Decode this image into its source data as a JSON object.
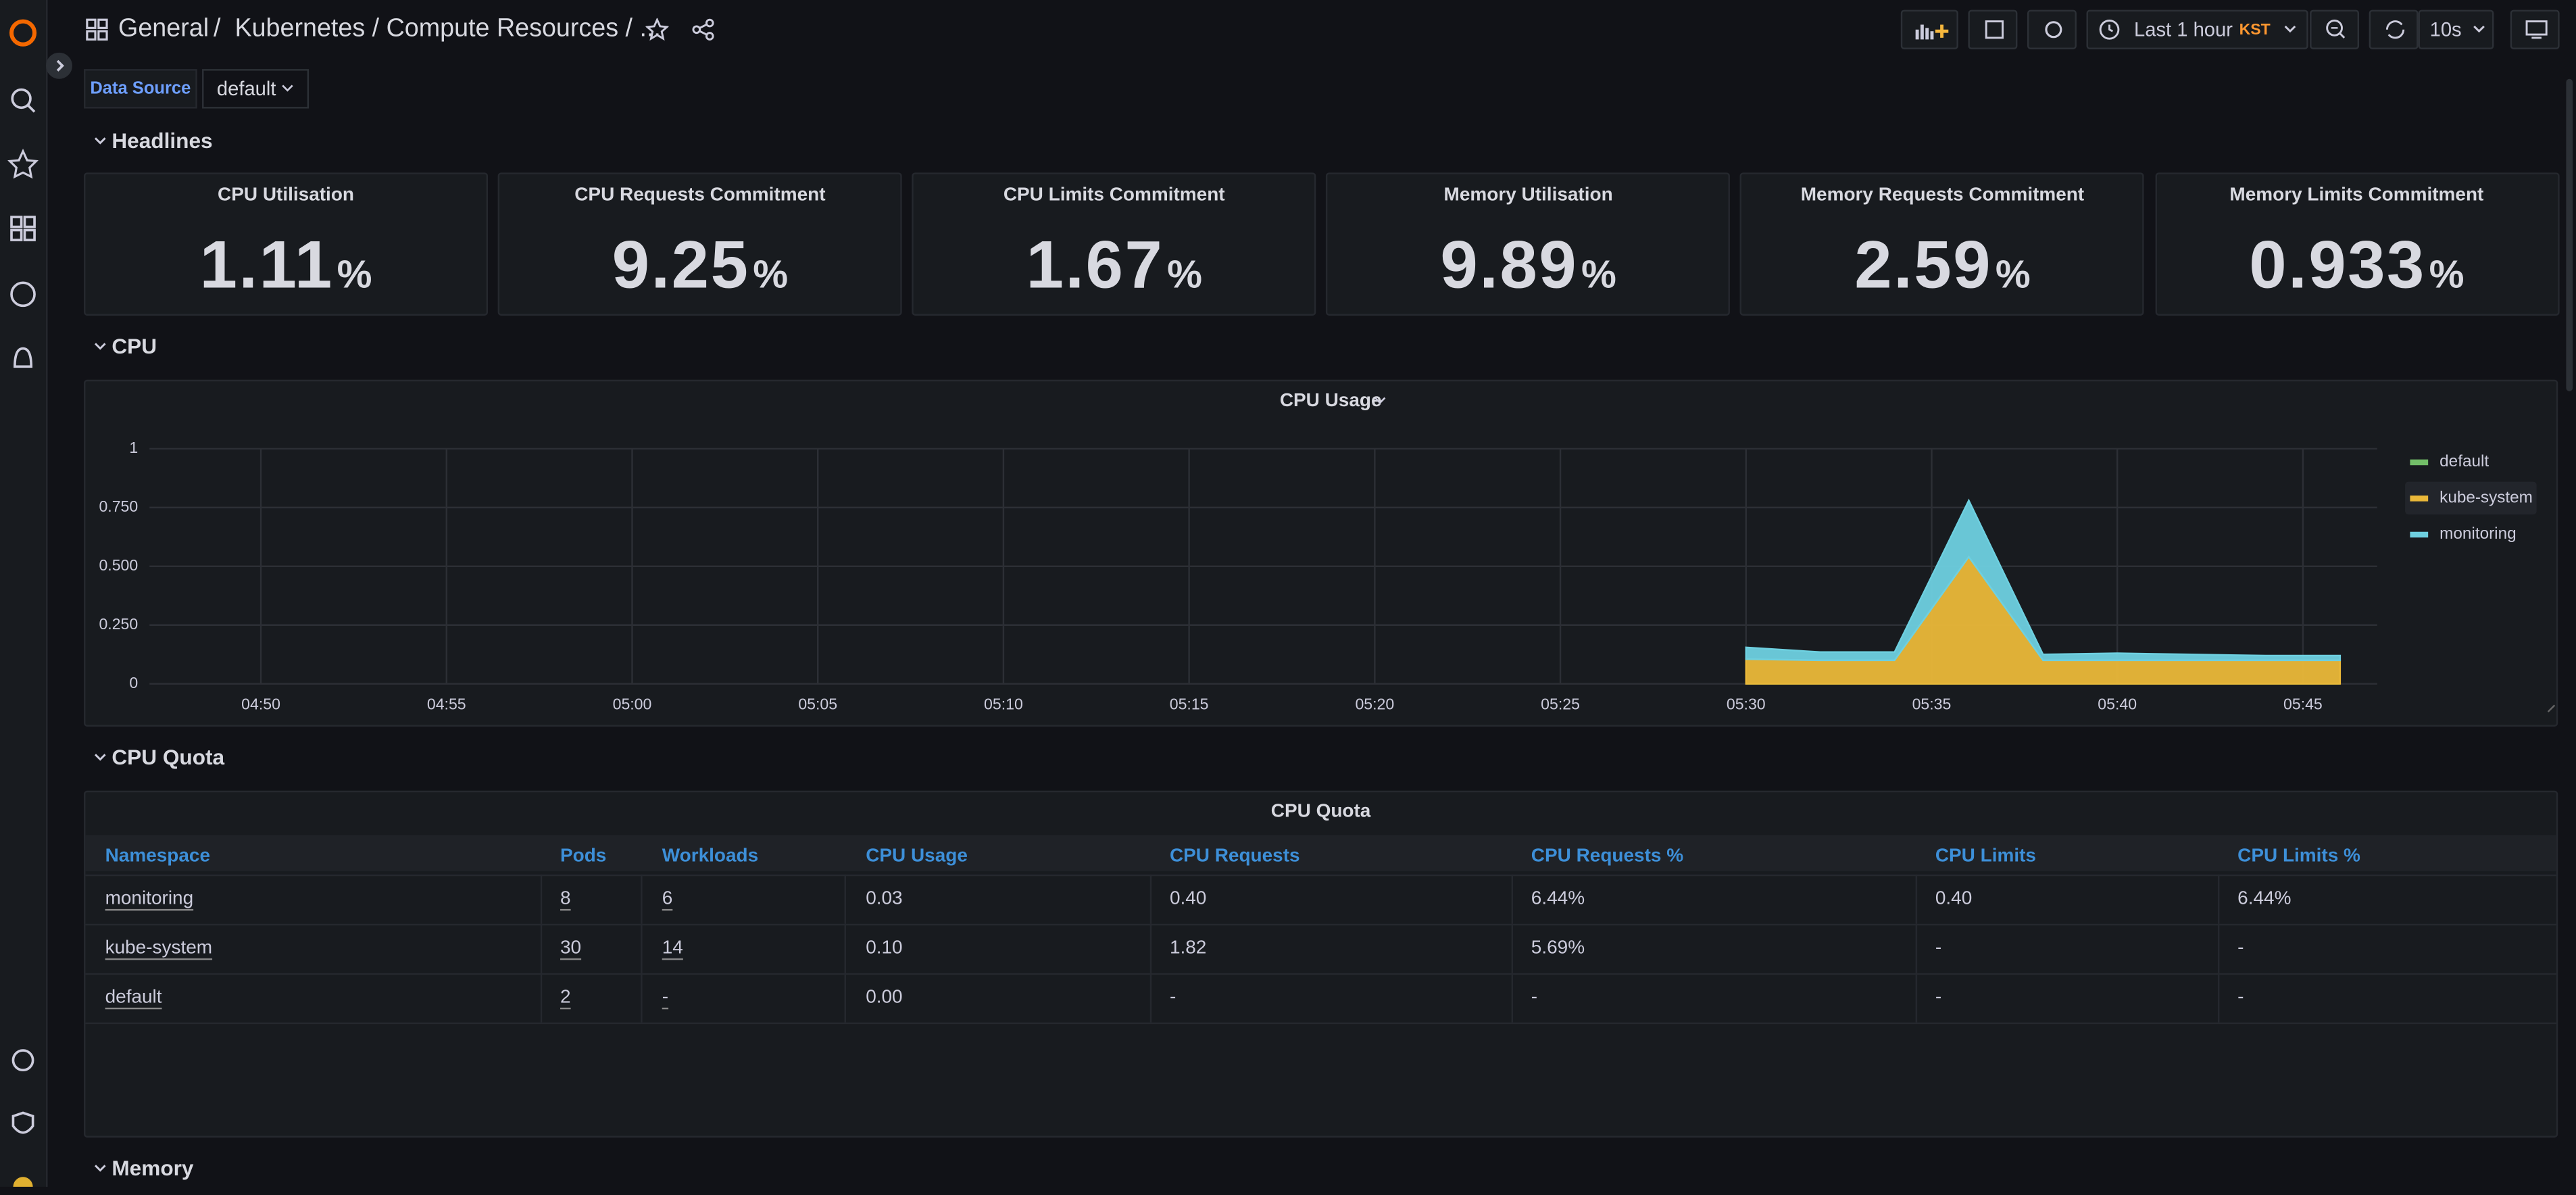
{
  "header": {
    "breadcrumb_root": "General",
    "breadcrumb_path": "/  Kubernetes / Compute Resources / ...",
    "time_range": "Last 1 hour",
    "timezone": "KST",
    "refresh": "10s"
  },
  "variables": {
    "label": "Data Source",
    "value": "default"
  },
  "rows": [
    "Headlines",
    "CPU",
    "CPU Quota",
    "Memory"
  ],
  "stats": [
    {
      "title": "CPU Utilisation",
      "value": "1.11",
      "unit": "%"
    },
    {
      "title": "CPU Requests Commitment",
      "value": "9.25",
      "unit": "%"
    },
    {
      "title": "CPU Limits Commitment",
      "value": "1.67",
      "unit": "%"
    },
    {
      "title": "Memory Utilisation",
      "value": "9.89",
      "unit": "%"
    },
    {
      "title": "Memory Requests Commitment",
      "value": "2.59",
      "unit": "%"
    },
    {
      "title": "Memory Limits Commitment",
      "value": "0.933",
      "unit": "%"
    }
  ],
  "chart_data": {
    "type": "area",
    "stacked": true,
    "title": "CPU Usage",
    "x": [
      "05:30",
      "05:32",
      "05:34",
      "05:36",
      "05:38",
      "05:40",
      "05:42",
      "05:44",
      "05:46"
    ],
    "series": [
      {
        "name": "default",
        "color": "#73bf69",
        "values": [
          0,
          0,
          0,
          0,
          0,
          0,
          0,
          0,
          0
        ]
      },
      {
        "name": "kube-system",
        "color": "#eab839",
        "values": [
          0.105,
          0.1,
          0.1,
          0.54,
          0.1,
          0.1,
          0.1,
          0.1,
          0.1
        ]
      },
      {
        "name": "monitoring",
        "color": "#6ed0e0",
        "values": [
          0.05,
          0.035,
          0.035,
          0.24,
          0.025,
          0.03,
          0.025,
          0.02,
          0.02
        ]
      }
    ],
    "xlim": [
      "04:47",
      "05:47"
    ],
    "xticks": [
      "04:50",
      "04:55",
      "05:00",
      "05:05",
      "05:10",
      "05:15",
      "05:20",
      "05:25",
      "05:30",
      "05:35",
      "05:40",
      "05:45"
    ],
    "ylim": [
      0,
      1
    ],
    "yticks": [
      0,
      {
        "value": 0.25,
        "label": "0.250"
      },
      {
        "value": 0.5,
        "label": "0.500"
      },
      {
        "value": 0.75,
        "label": "0.750"
      },
      1
    ],
    "grid": true,
    "legend": "right"
  },
  "table": {
    "title": "CPU Quota",
    "columns": [
      "Namespace",
      "Pods",
      "Workloads",
      "CPU Usage",
      "CPU Requests",
      "CPU Requests %",
      "CPU Limits",
      "CPU Limits %"
    ],
    "rows": [
      [
        "monitoring",
        "8",
        "6",
        "0.03",
        "0.40",
        "6.44%",
        "0.40",
        "6.44%"
      ],
      [
        "kube-system",
        "30",
        "14",
        "0.10",
        "1.82",
        "5.69%",
        "-",
        "-"
      ],
      [
        "default",
        "2",
        "-",
        "0.00",
        "-",
        "-",
        "-",
        "-"
      ]
    ]
  }
}
